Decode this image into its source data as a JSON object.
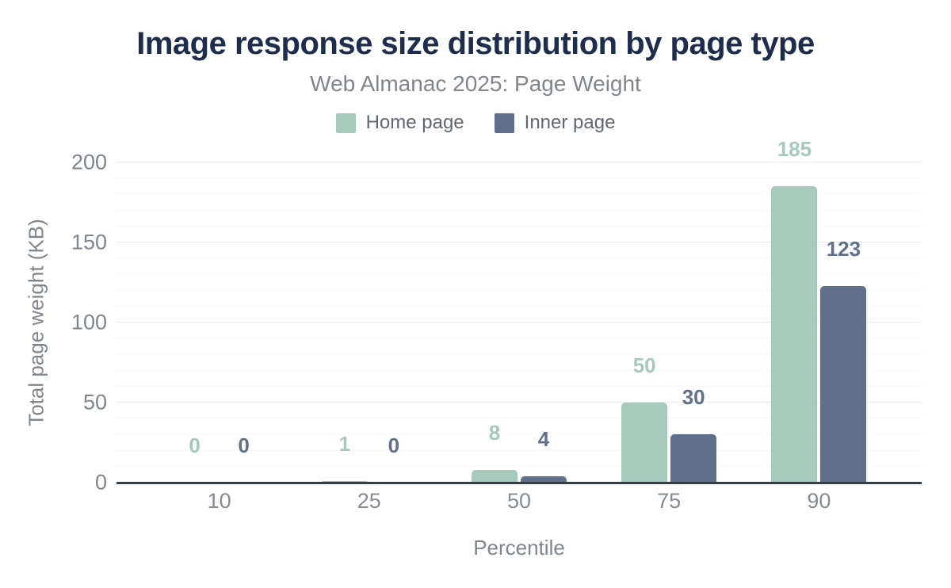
{
  "header": {
    "title": "Image response size distribution by page type",
    "subtitle": "Web Almanac 2025: Page Weight"
  },
  "legend": {
    "items": [
      {
        "label": "Home page",
        "color": "#a7c9bb"
      },
      {
        "label": "Inner page",
        "color": "#60708a"
      }
    ]
  },
  "axes": {
    "x_title": "Percentile",
    "y_title": "Total page weight (KB)"
  },
  "colors": {
    "title": "#1d2d4e",
    "subtitle": "#81868d",
    "tick_label": "#7d858d",
    "axis_line": "#373d45",
    "gridline_minor": "#f7f7f7",
    "gridline_major": "#e8eaec",
    "home_page": "#a7c9bb",
    "inner_page": "#60708a"
  },
  "chart_data": {
    "type": "bar",
    "title": "Image response size distribution by page type",
    "subtitle": "Web Almanac 2025: Page Weight",
    "xlabel": "Percentile",
    "ylabel": "Total page weight (KB)",
    "categories": [
      "10",
      "25",
      "50",
      "75",
      "90"
    ],
    "series": [
      {
        "name": "Home page",
        "color": "#a7c9bb",
        "values": [
          0,
          1,
          8,
          50,
          185
        ]
      },
      {
        "name": "Inner page",
        "color": "#60708a",
        "values": [
          0,
          0,
          4,
          30,
          123
        ]
      }
    ],
    "data_labels_shown": true,
    "ylim": [
      0,
      200
    ],
    "yticks": [
      0,
      50,
      100,
      150,
      200
    ],
    "grid": {
      "on": true,
      "minor_step": 10,
      "major_step": 50
    },
    "legend_position": "top"
  }
}
